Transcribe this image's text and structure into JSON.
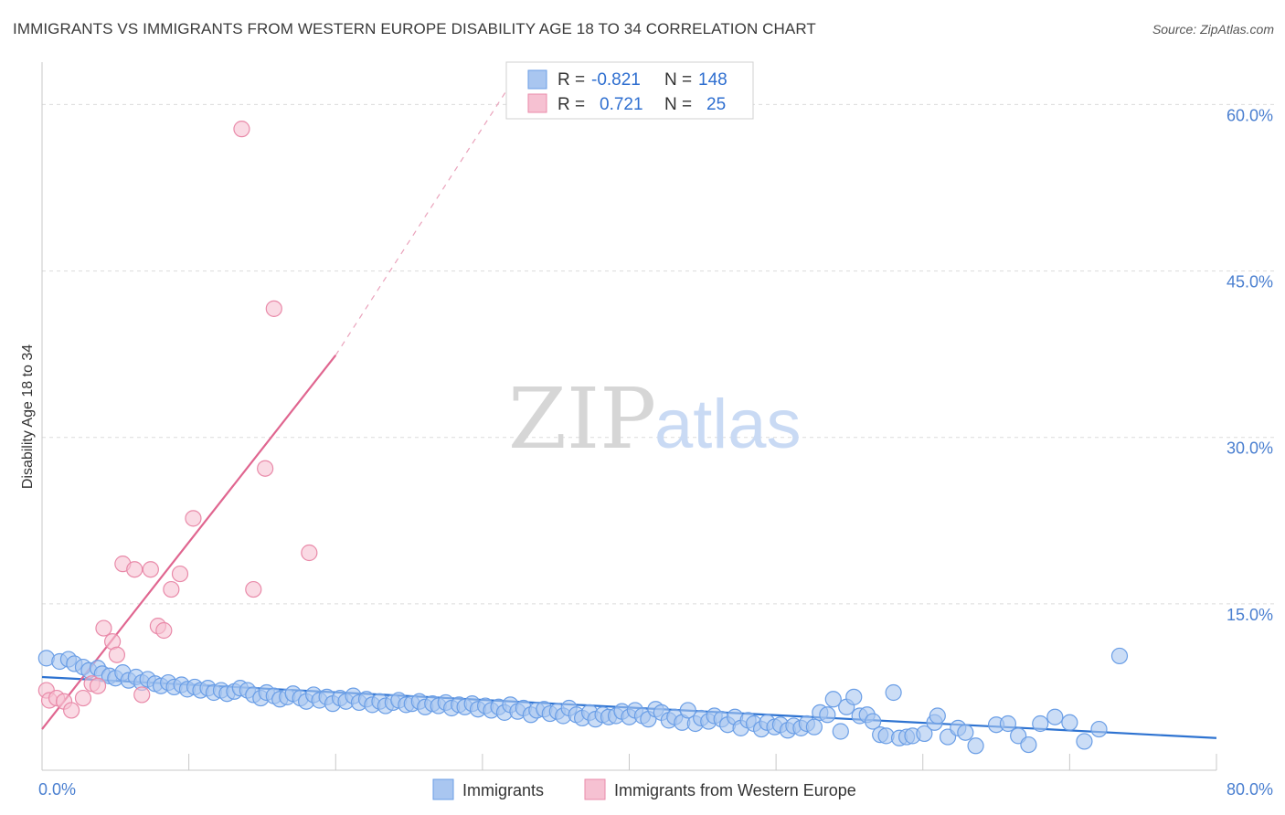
{
  "title": "IMMIGRANTS VS IMMIGRANTS FROM WESTERN EUROPE DISABILITY AGE 18 TO 34 CORRELATION CHART",
  "source": "Source: ZipAtlas.com",
  "watermark": {
    "zip": "ZIP",
    "atlas": "atlas"
  },
  "colors": {
    "blue": "#6a9ee6",
    "blue_fill": "#a9c6f0",
    "blue_line": "#2e73d1",
    "pink": "#e98aa9",
    "pink_fill": "#f6c1d2",
    "pink_line": "#e06690",
    "grid": "#d9d9d9",
    "axis_text": "#4a7fd0"
  },
  "legend": {
    "r_label": "R =",
    "n_label": "N =",
    "rows": [
      {
        "series": "Immigrants",
        "r": "-0.821",
        "n": "148"
      },
      {
        "series": "Immigrants from Western Europe",
        "r": "0.721",
        "n": "25"
      }
    ]
  },
  "chart_data": {
    "type": "scatter",
    "title": "IMMIGRANTS VS IMMIGRANTS FROM WESTERN EUROPE DISABILITY AGE 18 TO 34 CORRELATION CHART",
    "xlabel": "",
    "ylabel": "Disability Age 18 to 34",
    "xlim": [
      0,
      80
    ],
    "ylim": [
      0,
      63
    ],
    "x_tick_labels": [
      "0.0%",
      "80.0%"
    ],
    "y_ticks": [
      15,
      30,
      45,
      60
    ],
    "y_tick_labels": [
      "15.0%",
      "30.0%",
      "45.0%",
      "60.0%"
    ],
    "series": [
      {
        "name": "Immigrants",
        "color": "#6a9ee6",
        "trend": {
          "x0": 0,
          "y0": 8.4,
          "x1": 80,
          "y1": 2.9
        },
        "points": [
          [
            0.3,
            10.1
          ],
          [
            1.2,
            9.8
          ],
          [
            1.8,
            10.0
          ],
          [
            2.2,
            9.6
          ],
          [
            2.8,
            9.3
          ],
          [
            3.2,
            9.0
          ],
          [
            3.8,
            9.2
          ],
          [
            4.1,
            8.7
          ],
          [
            4.6,
            8.5
          ],
          [
            5.0,
            8.3
          ],
          [
            5.5,
            8.8
          ],
          [
            5.9,
            8.1
          ],
          [
            6.4,
            8.4
          ],
          [
            6.8,
            7.9
          ],
          [
            7.2,
            8.2
          ],
          [
            7.7,
            7.8
          ],
          [
            8.1,
            7.6
          ],
          [
            8.6,
            7.9
          ],
          [
            9.0,
            7.5
          ],
          [
            9.5,
            7.7
          ],
          [
            9.9,
            7.3
          ],
          [
            10.4,
            7.5
          ],
          [
            10.8,
            7.2
          ],
          [
            11.3,
            7.4
          ],
          [
            11.7,
            7.0
          ],
          [
            12.2,
            7.2
          ],
          [
            12.6,
            6.9
          ],
          [
            13.1,
            7.1
          ],
          [
            13.5,
            7.4
          ],
          [
            14.0,
            7.2
          ],
          [
            14.4,
            6.8
          ],
          [
            14.9,
            6.5
          ],
          [
            15.3,
            7.0
          ],
          [
            15.8,
            6.7
          ],
          [
            16.2,
            6.4
          ],
          [
            16.7,
            6.6
          ],
          [
            17.1,
            6.9
          ],
          [
            17.6,
            6.5
          ],
          [
            18.0,
            6.2
          ],
          [
            18.5,
            6.8
          ],
          [
            18.9,
            6.3
          ],
          [
            19.4,
            6.6
          ],
          [
            19.8,
            6.0
          ],
          [
            20.3,
            6.5
          ],
          [
            20.7,
            6.2
          ],
          [
            21.2,
            6.7
          ],
          [
            21.6,
            6.1
          ],
          [
            22.1,
            6.4
          ],
          [
            22.5,
            5.9
          ],
          [
            23.0,
            6.2
          ],
          [
            23.4,
            5.8
          ],
          [
            23.9,
            6.1
          ],
          [
            24.3,
            6.3
          ],
          [
            24.8,
            5.9
          ],
          [
            25.2,
            6.0
          ],
          [
            25.7,
            6.2
          ],
          [
            26.1,
            5.7
          ],
          [
            26.6,
            6.0
          ],
          [
            27.0,
            5.8
          ],
          [
            27.5,
            6.1
          ],
          [
            27.9,
            5.6
          ],
          [
            28.4,
            5.9
          ],
          [
            28.8,
            5.7
          ],
          [
            29.3,
            6.0
          ],
          [
            29.7,
            5.5
          ],
          [
            30.2,
            5.8
          ],
          [
            30.6,
            5.4
          ],
          [
            31.1,
            5.7
          ],
          [
            31.5,
            5.2
          ],
          [
            31.9,
            5.9
          ],
          [
            32.4,
            5.3
          ],
          [
            32.8,
            5.6
          ],
          [
            33.3,
            5.0
          ],
          [
            33.7,
            5.4
          ],
          [
            34.2,
            5.5
          ],
          [
            34.6,
            5.1
          ],
          [
            35.1,
            5.3
          ],
          [
            35.5,
            4.9
          ],
          [
            35.9,
            5.6
          ],
          [
            36.4,
            5.0
          ],
          [
            36.8,
            4.7
          ],
          [
            37.3,
            5.2
          ],
          [
            37.7,
            4.6
          ],
          [
            38.2,
            5.0
          ],
          [
            38.6,
            4.8
          ],
          [
            39.1,
            4.9
          ],
          [
            39.5,
            5.3
          ],
          [
            40.0,
            4.8
          ],
          [
            40.4,
            5.4
          ],
          [
            40.9,
            4.9
          ],
          [
            41.3,
            4.6
          ],
          [
            41.8,
            5.5
          ],
          [
            42.2,
            5.2
          ],
          [
            42.7,
            4.5
          ],
          [
            43.1,
            4.8
          ],
          [
            43.6,
            4.3
          ],
          [
            44.0,
            5.4
          ],
          [
            44.5,
            4.2
          ],
          [
            44.9,
            4.7
          ],
          [
            45.4,
            4.4
          ],
          [
            45.8,
            4.9
          ],
          [
            46.3,
            4.6
          ],
          [
            46.7,
            4.1
          ],
          [
            47.2,
            4.8
          ],
          [
            47.6,
            3.8
          ],
          [
            48.1,
            4.5
          ],
          [
            48.5,
            4.2
          ],
          [
            49.0,
            3.7
          ],
          [
            49.4,
            4.3
          ],
          [
            49.9,
            3.9
          ],
          [
            50.3,
            4.1
          ],
          [
            50.8,
            3.6
          ],
          [
            51.2,
            4.0
          ],
          [
            51.7,
            3.8
          ],
          [
            52.1,
            4.2
          ],
          [
            52.6,
            3.9
          ],
          [
            53.0,
            5.2
          ],
          [
            53.5,
            5.0
          ],
          [
            53.9,
            6.4
          ],
          [
            54.4,
            3.5
          ],
          [
            54.8,
            5.7
          ],
          [
            55.3,
            6.6
          ],
          [
            55.7,
            4.9
          ],
          [
            56.2,
            5.0
          ],
          [
            56.6,
            4.4
          ],
          [
            57.1,
            3.2
          ],
          [
            57.5,
            3.1
          ],
          [
            58.0,
            7.0
          ],
          [
            58.4,
            2.9
          ],
          [
            58.9,
            3.0
          ],
          [
            59.3,
            3.1
          ],
          [
            60.1,
            3.3
          ],
          [
            60.8,
            4.3
          ],
          [
            61.0,
            4.9
          ],
          [
            61.7,
            3.0
          ],
          [
            62.4,
            3.8
          ],
          [
            62.9,
            3.4
          ],
          [
            63.6,
            2.2
          ],
          [
            65.0,
            4.1
          ],
          [
            65.8,
            4.2
          ],
          [
            66.5,
            3.1
          ],
          [
            67.2,
            2.3
          ],
          [
            68.0,
            4.2
          ],
          [
            69.0,
            4.8
          ],
          [
            70.0,
            4.3
          ],
          [
            71.0,
            2.6
          ],
          [
            72.0,
            3.7
          ],
          [
            73.4,
            10.3
          ]
        ]
      },
      {
        "name": "Immigrants from Western Europe",
        "color": "#e98aa9",
        "trend": {
          "x0": 0,
          "y0": 3.7,
          "x1": 20,
          "y1": 37.4,
          "dashed_to_x": 32,
          "dashed_to_y": 62.0
        },
        "points": [
          [
            0.3,
            7.2
          ],
          [
            0.5,
            6.3
          ],
          [
            1.0,
            6.5
          ],
          [
            1.5,
            6.2
          ],
          [
            2.0,
            5.4
          ],
          [
            2.8,
            6.5
          ],
          [
            3.4,
            7.8
          ],
          [
            3.8,
            7.6
          ],
          [
            4.2,
            12.8
          ],
          [
            4.8,
            11.6
          ],
          [
            5.1,
            10.4
          ],
          [
            5.5,
            18.6
          ],
          [
            6.3,
            18.1
          ],
          [
            6.8,
            6.8
          ],
          [
            7.4,
            18.1
          ],
          [
            7.9,
            13.0
          ],
          [
            8.3,
            12.6
          ],
          [
            8.8,
            16.3
          ],
          [
            9.4,
            17.7
          ],
          [
            10.3,
            22.7
          ],
          [
            13.6,
            57.8
          ],
          [
            14.4,
            16.3
          ],
          [
            15.2,
            27.2
          ],
          [
            15.8,
            41.6
          ],
          [
            18.2,
            19.6
          ]
        ]
      }
    ]
  }
}
